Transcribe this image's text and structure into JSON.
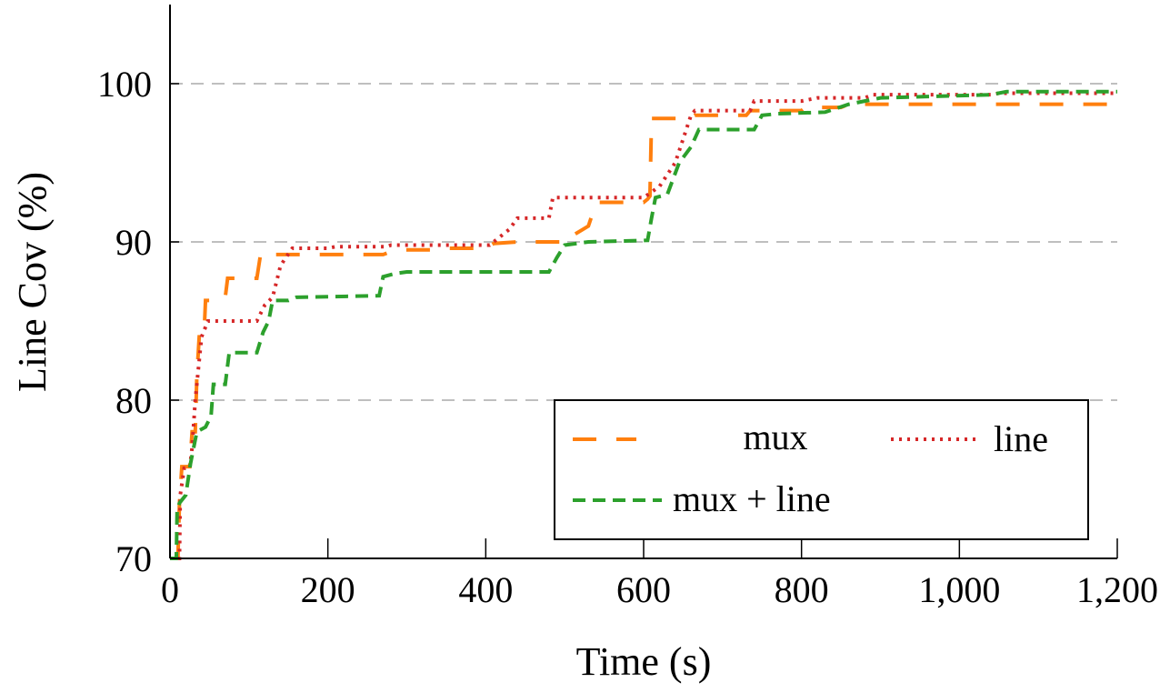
{
  "chart_data": {
    "type": "line",
    "title": "",
    "xlabel": "Time (s)",
    "ylabel": "Line Cov (%)",
    "xlim": [
      0,
      1200
    ],
    "ylim": [
      70,
      105
    ],
    "xticks": [
      0,
      200,
      400,
      600,
      800,
      1000,
      1200
    ],
    "xtick_labels": [
      "0",
      "200",
      "400",
      "600",
      "800",
      "1,000",
      "1,200"
    ],
    "yticks": [
      70,
      80,
      90,
      100
    ],
    "ytick_labels": [
      "70",
      "80",
      "90",
      "100"
    ],
    "grid": "horizontal dashed at 80, 90, 100",
    "legend": {
      "placement": "bottom-right",
      "columns": 2
    },
    "series": [
      {
        "name": "mux",
        "color": "#ff7f0e",
        "dash": "long-dash",
        "step": true,
        "points": [
          [
            0,
            70
          ],
          [
            10,
            70
          ],
          [
            12,
            73.5
          ],
          [
            15,
            75.8
          ],
          [
            25,
            75.8
          ],
          [
            28,
            78
          ],
          [
            32,
            78
          ],
          [
            34,
            81.5
          ],
          [
            37,
            84
          ],
          [
            43,
            84
          ],
          [
            45,
            86.3
          ],
          [
            55,
            86.3
          ],
          [
            58,
            86.5
          ],
          [
            70,
            86.5
          ],
          [
            73,
            87.7
          ],
          [
            110,
            87.7
          ],
          [
            115,
            89.3
          ],
          [
            125,
            89.3
          ],
          [
            130,
            89.2
          ],
          [
            160,
            89.2
          ],
          [
            165,
            89.2
          ],
          [
            270,
            89.2
          ],
          [
            275,
            89.3
          ],
          [
            290,
            89.5
          ],
          [
            330,
            89.5
          ],
          [
            340,
            89.6
          ],
          [
            400,
            89.6
          ],
          [
            410,
            89.9
          ],
          [
            440,
            90
          ],
          [
            505,
            90
          ],
          [
            510,
            90.4
          ],
          [
            530,
            91
          ],
          [
            540,
            92.5
          ],
          [
            600,
            92.5
          ],
          [
            605,
            92.7
          ],
          [
            608,
            92.9
          ],
          [
            610,
            97.8
          ],
          [
            660,
            97.8
          ],
          [
            665,
            98
          ],
          [
            730,
            98
          ],
          [
            735,
            98.3
          ],
          [
            800,
            98.3
          ],
          [
            805,
            98.5
          ],
          [
            850,
            98.5
          ],
          [
            860,
            98.7
          ],
          [
            1200,
            98.7
          ]
        ]
      },
      {
        "name": "line",
        "color": "#d62728",
        "dash": "dotted",
        "step": true,
        "points": [
          [
            0,
            70
          ],
          [
            12,
            70
          ],
          [
            13,
            74
          ],
          [
            18,
            75.7
          ],
          [
            25,
            75.7
          ],
          [
            28,
            77
          ],
          [
            32,
            80
          ],
          [
            36,
            82
          ],
          [
            40,
            84
          ],
          [
            48,
            85
          ],
          [
            110,
            85
          ],
          [
            120,
            86
          ],
          [
            130,
            86.5
          ],
          [
            135,
            87.5
          ],
          [
            140,
            88.5
          ],
          [
            148,
            89.1
          ],
          [
            155,
            89.6
          ],
          [
            200,
            89.6
          ],
          [
            210,
            89.7
          ],
          [
            275,
            89.7
          ],
          [
            280,
            89.8
          ],
          [
            405,
            89.8
          ],
          [
            410,
            90
          ],
          [
            430,
            90.8
          ],
          [
            440,
            91.5
          ],
          [
            480,
            91.5
          ],
          [
            485,
            92.8
          ],
          [
            600,
            92.8
          ],
          [
            620,
            93.5
          ],
          [
            640,
            95
          ],
          [
            650,
            96.5
          ],
          [
            660,
            98
          ],
          [
            665,
            98.3
          ],
          [
            735,
            98.3
          ],
          [
            740,
            98.9
          ],
          [
            800,
            98.9
          ],
          [
            820,
            99.1
          ],
          [
            880,
            99.1
          ],
          [
            890,
            99.3
          ],
          [
            1040,
            99.3
          ],
          [
            1050,
            99.4
          ],
          [
            1200,
            99.4
          ]
        ]
      },
      {
        "name": "mux + line",
        "color": "#2ca02c",
        "dash": "dashed",
        "step": true,
        "points": [
          [
            0,
            70
          ],
          [
            8,
            70
          ],
          [
            9,
            73
          ],
          [
            12,
            73.5
          ],
          [
            20,
            74
          ],
          [
            26,
            76
          ],
          [
            30,
            77
          ],
          [
            34,
            78
          ],
          [
            45,
            78.3
          ],
          [
            52,
            79
          ],
          [
            55,
            81
          ],
          [
            70,
            81
          ],
          [
            75,
            83
          ],
          [
            110,
            83
          ],
          [
            118,
            84.3
          ],
          [
            125,
            85
          ],
          [
            130,
            86.3
          ],
          [
            150,
            86.3
          ],
          [
            160,
            86.5
          ],
          [
            265,
            86.6
          ],
          [
            270,
            87.8
          ],
          [
            285,
            88
          ],
          [
            300,
            88.1
          ],
          [
            480,
            88.1
          ],
          [
            490,
            89
          ],
          [
            500,
            89.8
          ],
          [
            530,
            90
          ],
          [
            605,
            90.1
          ],
          [
            610,
            91.5
          ],
          [
            615,
            92.8
          ],
          [
            630,
            93
          ],
          [
            645,
            95
          ],
          [
            660,
            96
          ],
          [
            670,
            97.1
          ],
          [
            740,
            97.1
          ],
          [
            750,
            98
          ],
          [
            770,
            98.1
          ],
          [
            830,
            98.2
          ],
          [
            860,
            98.7
          ],
          [
            900,
            99.1
          ],
          [
            1040,
            99.3
          ],
          [
            1060,
            99.5
          ],
          [
            1200,
            99.5
          ]
        ]
      }
    ]
  }
}
